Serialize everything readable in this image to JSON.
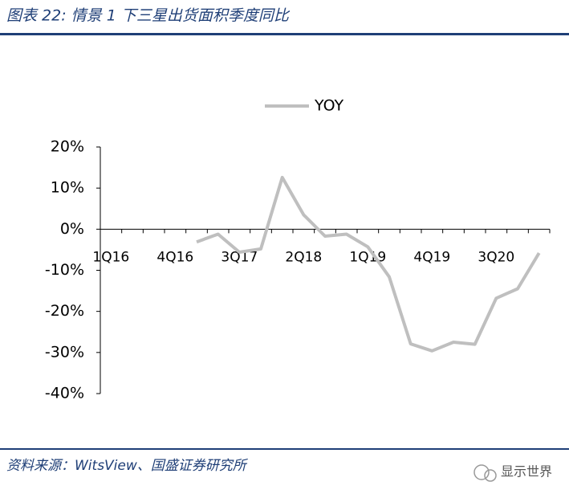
{
  "chart_data": {
    "type": "line",
    "title": "图表 22: 情景 1 下三星出货面积季度同比",
    "source": "资料来源：WitsView、国盛证券研究所",
    "watermark": "显示世界",
    "categories": [
      "1Q16",
      null,
      null,
      "4Q16",
      null,
      null,
      "3Q17",
      null,
      null,
      "2Q18",
      null,
      null,
      "1Q19",
      null,
      null,
      "4Q19",
      null,
      null,
      "3Q20",
      null,
      null
    ],
    "series": [
      {
        "name": "YOY",
        "color": "#bfbfbf",
        "values": [
          null,
          null,
          null,
          null,
          -3.1,
          -1.2,
          -5.6,
          -4.8,
          12.6,
          3.5,
          -1.7,
          -1.2,
          -4.3,
          -11.6,
          -27.9,
          -29.6,
          -27.5,
          -28.0,
          -16.8,
          -14.5,
          -5.8
        ]
      }
    ],
    "ylim": [
      -40,
      20
    ],
    "yticks": [
      {
        "value": -40,
        "label": "-40%"
      },
      {
        "value": -30,
        "label": "-30%"
      },
      {
        "value": -20,
        "label": "-20%"
      },
      {
        "value": -10,
        "label": "-10%"
      },
      {
        "value": 0,
        "label": "0%"
      },
      {
        "value": 10,
        "label": "10%"
      },
      {
        "value": 20,
        "label": "20%"
      }
    ],
    "grid": false,
    "legend": "top"
  }
}
